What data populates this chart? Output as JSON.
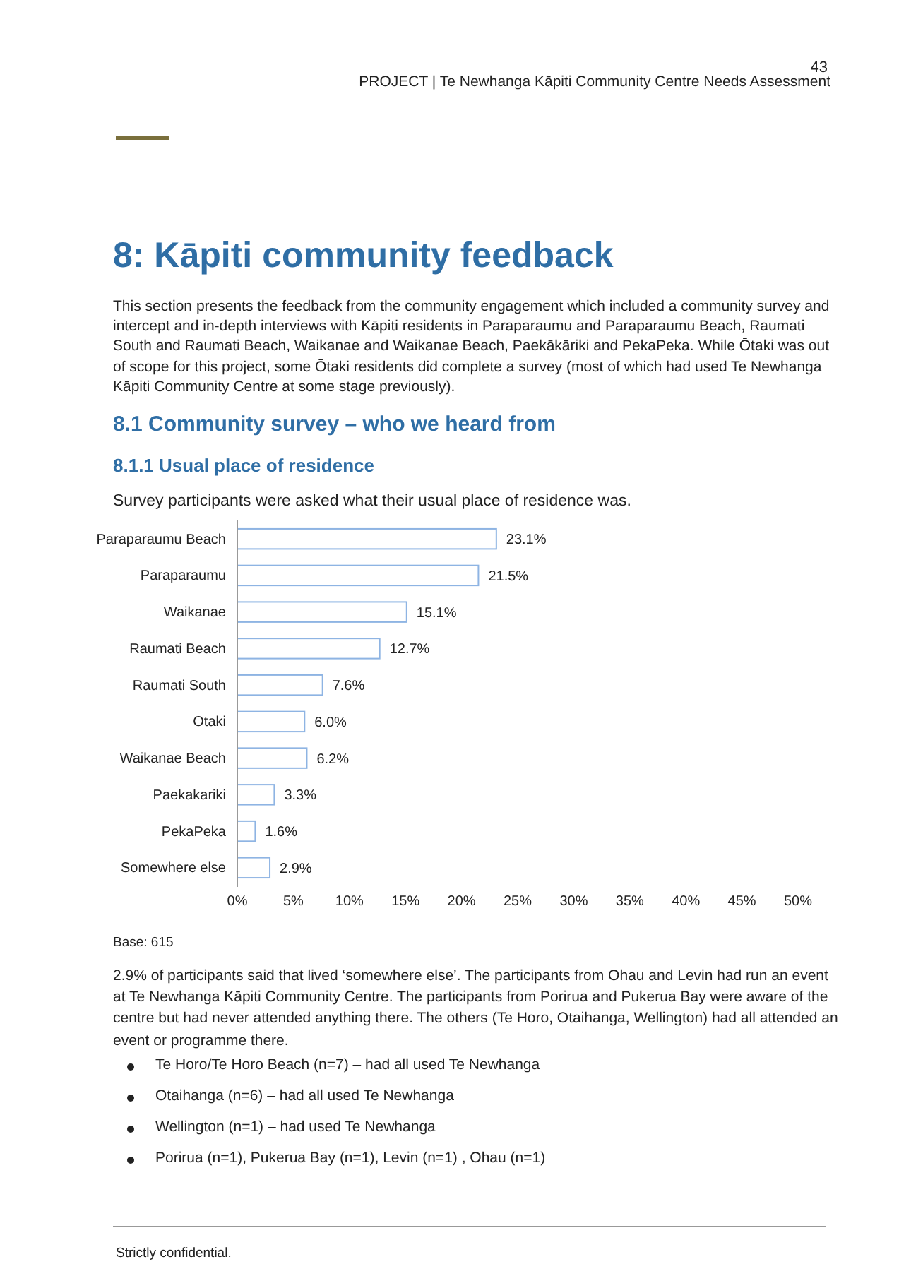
{
  "chart_data": {
    "type": "bar",
    "orientation": "horizontal",
    "title": "8.1.1   Usual place of residence",
    "subtitle": "Survey participants were asked what their usual place of residence was.",
    "categories": [
      "Paraparaumu Beach",
      "Paraparaumu",
      "Waikanae",
      "Raumati Beach",
      "Raumati South",
      "Otaki",
      "Waikanae Beach",
      "Paekakariki",
      "PekaPeka",
      "Somewhere else"
    ],
    "values": [
      23.1,
      21.5,
      15.1,
      12.7,
      7.6,
      6.0,
      6.2,
      3.3,
      1.6,
      2.9
    ],
    "value_labels": [
      "23.1%",
      "21.5%",
      "15.1%",
      "12.7%",
      "7.6%",
      "6.0%",
      "6.2%",
      "3.3%",
      "1.6%",
      "2.9%"
    ],
    "color": "#8eb4e3",
    "xlim": [
      0,
      50
    ],
    "xticks": [
      {
        "value": 0,
        "label": "0%"
      },
      {
        "value": 5,
        "label": "5%"
      },
      {
        "value": 10,
        "label": "10%"
      },
      {
        "value": 15,
        "label": "15%"
      },
      {
        "value": 20,
        "label": "20%"
      },
      {
        "value": 25,
        "label": "25%"
      },
      {
        "value": 30,
        "label": "30%"
      },
      {
        "value": 35,
        "label": "35%"
      },
      {
        "value": 40,
        "label": "40%"
      },
      {
        "value": 45,
        "label": "45%"
      },
      {
        "value": 50,
        "label": "50%"
      }
    ],
    "grid": false,
    "annotations": [
      "43",
      "PROJECT | Te Newhanga Kāpiti Community Centre Needs Assessment",
      "8:   Kāpiti community feedback",
      "This section presents the feedback from the community engagement which included a community survey and intercept and in-depth interviews with Kāpiti residents in Paraparaumu and Paraparaumu Beach, Raumati South and Raumati Beach, Waikanae and Waikanae Beach, Paekākāriki and PekaPeka.  While Ōtaki was out of scope for this project, some Ōtaki residents did complete a survey (most of which had used Te Newhanga Kāpiti Community Centre at some stage previously).",
      "8.1      Community survey – who we heard from",
      "Base: 615",
      "2.9% of participants said that lived ‘somewhere else’.  The participants from Ohau and Levin had run an event at Te Newhanga Kāpiti Community Centre.  The participants from Porirua and Pukerua Bay were aware of the centre but had never attended anything there.  The others (Te Horo, Otaihanga, Wellington) had all attended an event or programme there.",
      "Te Horo/Te Horo Beach (n=7) – had all used Te Newhanga",
      "Otaihanga (n=6) – had all used Te Newhanga",
      "Wellington (n=1) – had used Te Newhanga",
      "Porirua (n=1), Pukerua Bay (n=1), Levin (n=1) , Ohau (n=1)",
      "Strictly confidential."
    ]
  }
}
